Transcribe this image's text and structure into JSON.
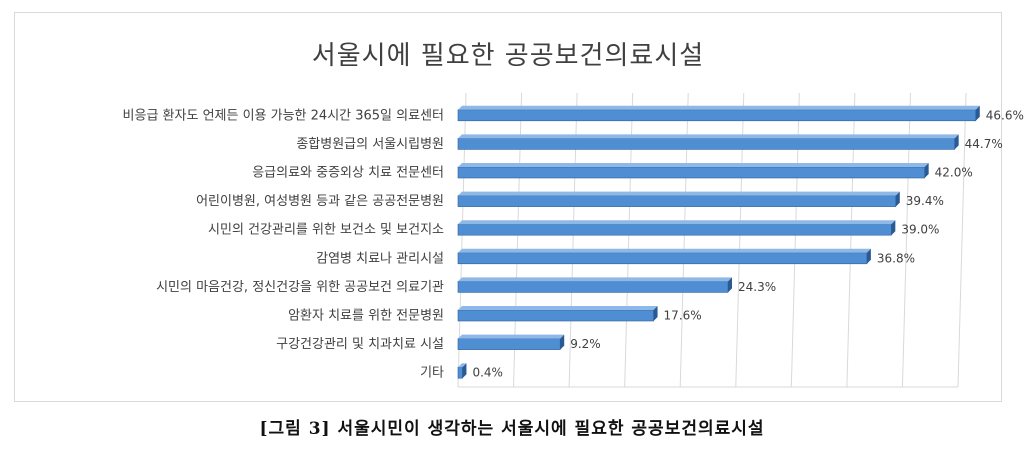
{
  "figure_caption": "[그림 3] 서울시민이 생각하는 서울시에 필요한 공공보건의료시설",
  "chart_data": {
    "type": "bar",
    "orientation": "horizontal",
    "title": "서울시에 필요한 공공보건의료시설",
    "categories": [
      "비응급 환자도 언제든 이용 가능한 24시간 365일 의료센터",
      "종합병원급의 서울시립병원",
      "응급의료와 중증외상 치료 전문센터",
      "어린이병원, 여성병원 등과 같은 공공전문병원",
      "시민의 건강관리를 위한 보건소 및 보건지소",
      "감염병 치료나 관리시설",
      "시민의 마음건강, 정신건강을 위한 공공보건 의료기관",
      "암환자 치료를 위한 전문병원",
      "구강건강관리 및 치과치료 시설",
      "기타"
    ],
    "values": [
      46.6,
      44.7,
      42.0,
      39.4,
      39.0,
      36.8,
      24.3,
      17.6,
      9.2,
      0.4
    ],
    "value_labels": [
      "46.6%",
      "44.7%",
      "42.0%",
      "39.4%",
      "39.0%",
      "36.8%",
      "24.3%",
      "17.6%",
      "9.2%",
      "0.4%"
    ],
    "xlim": [
      0,
      45
    ],
    "grid": true,
    "legend": "none",
    "bar_color": "#4f8ed3",
    "bar_edge_color": "#2e5f99"
  }
}
